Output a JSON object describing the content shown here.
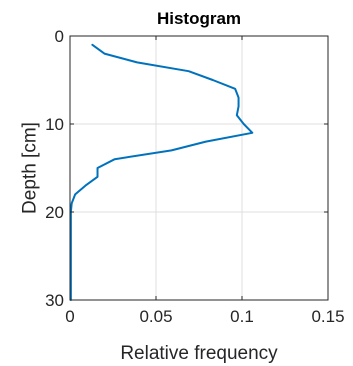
{
  "chart_data": {
    "type": "line",
    "title": "Histogram",
    "xlabel": "Relative frequency",
    "ylabel": "Depth [cm]",
    "xlim": [
      0,
      0.15
    ],
    "ylim": [
      0,
      30
    ],
    "y_reversed": true,
    "grid": true,
    "x_ticks": [
      0,
      0.05,
      0.1,
      0.15
    ],
    "x_tick_labels": [
      "0",
      "0.05",
      "0.1",
      "0.15"
    ],
    "y_ticks": [
      0,
      10,
      20,
      30
    ],
    "y_tick_labels": [
      "0",
      "10",
      "20",
      "30"
    ],
    "series": [
      {
        "color": "#0072BD",
        "points": [
          [
            0.013,
            1
          ],
          [
            0.02,
            2
          ],
          [
            0.039,
            3
          ],
          [
            0.069,
            4
          ],
          [
            0.083,
            5
          ],
          [
            0.096,
            6
          ],
          [
            0.098,
            7
          ],
          [
            0.098,
            8
          ],
          [
            0.097,
            9
          ],
          [
            0.101,
            10
          ],
          [
            0.106,
            11
          ],
          [
            0.079,
            12
          ],
          [
            0.059,
            13
          ],
          [
            0.026,
            14
          ],
          [
            0.016,
            15
          ],
          [
            0.016,
            16
          ],
          [
            0.009,
            17
          ],
          [
            0.003,
            18
          ],
          [
            0.001,
            19
          ],
          [
            0.0005,
            20
          ],
          [
            0.0005,
            25
          ],
          [
            0.0005,
            30
          ]
        ]
      }
    ]
  }
}
